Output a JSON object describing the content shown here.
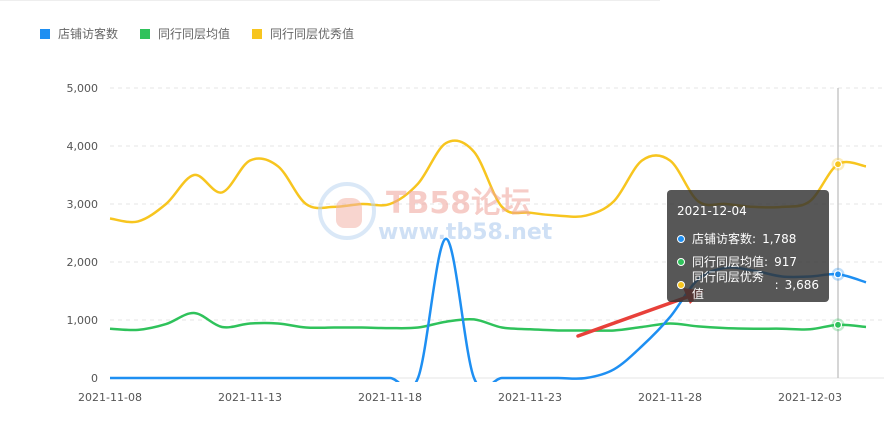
{
  "colors": {
    "visitors": "#1e8ff2",
    "peer_avg": "#2fc25b",
    "peer_excellent": "#f7c51f",
    "tooltip_bg": "rgba(50,50,50,0.82)",
    "arrow": "#e8403a"
  },
  "legend": [
    {
      "label": "店铺访客数",
      "color": "#1e8ff2"
    },
    {
      "label": "同行同层均值",
      "color": "#2fc25b"
    },
    {
      "label": "同行同层优秀值",
      "color": "#f7c51f"
    }
  ],
  "tooltip": {
    "date": "2021-12-04",
    "rows": [
      {
        "label": "店铺访客数",
        "value": "1,788",
        "color": "#1e8ff2"
      },
      {
        "label": "同行同层均值",
        "value": "917",
        "color": "#2fc25b"
      },
      {
        "label": "同行同层优秀值",
        "value": "3,686",
        "color": "#f7c51f"
      }
    ]
  },
  "watermark": {
    "title": "TB58论坛",
    "url": "www.tb58.net"
  },
  "chart_data": {
    "type": "line",
    "x": [
      "2021-11-08",
      "2021-11-09",
      "2021-11-10",
      "2021-11-11",
      "2021-11-12",
      "2021-11-13",
      "2021-11-14",
      "2021-11-15",
      "2021-11-16",
      "2021-11-17",
      "2021-11-18",
      "2021-11-19",
      "2021-11-20",
      "2021-11-21",
      "2021-11-22",
      "2021-11-23",
      "2021-11-24",
      "2021-11-25",
      "2021-11-26",
      "2021-11-27",
      "2021-11-28",
      "2021-11-29",
      "2021-11-30",
      "2021-12-01",
      "2021-12-02",
      "2021-12-03",
      "2021-12-04",
      "2021-12-05"
    ],
    "x_tick_labels": [
      "2021-11-08",
      "2021-11-13",
      "2021-11-18",
      "2021-11-23",
      "2021-11-28",
      "2021-12-03"
    ],
    "y_ticks": [
      0,
      1000,
      2000,
      3000,
      4000,
      5000
    ],
    "y_tick_labels": [
      "0",
      "1,000",
      "2,000",
      "3,000",
      "4,000",
      "5,000"
    ],
    "ylim": [
      0,
      5000
    ],
    "grid": true,
    "legend_position": "top-left",
    "highlight_x": "2021-12-04",
    "series": [
      {
        "name": "店铺访客数",
        "color": "#1e8ff2",
        "values": [
          0,
          0,
          0,
          0,
          0,
          0,
          0,
          0,
          0,
          0,
          0,
          0,
          2400,
          0,
          0,
          0,
          0,
          0,
          150,
          550,
          1050,
          1700,
          1900,
          1850,
          1750,
          1750,
          1788,
          1650
        ]
      },
      {
        "name": "同行同层均值",
        "color": "#2fc25b",
        "values": [
          850,
          830,
          930,
          1120,
          880,
          940,
          940,
          870,
          870,
          870,
          860,
          870,
          970,
          1010,
          870,
          840,
          820,
          820,
          820,
          880,
          940,
          890,
          860,
          850,
          850,
          840,
          917,
          880
        ]
      },
      {
        "name": "同行同层优秀值",
        "color": "#f7c51f",
        "values": [
          2750,
          2700,
          3000,
          3500,
          3200,
          3750,
          3650,
          3000,
          2950,
          3000,
          3000,
          3350,
          4050,
          3900,
          2950,
          2850,
          2800,
          2800,
          3050,
          3750,
          3750,
          3050,
          3000,
          2950,
          2950,
          3050,
          3686,
          3650
        ]
      }
    ]
  }
}
